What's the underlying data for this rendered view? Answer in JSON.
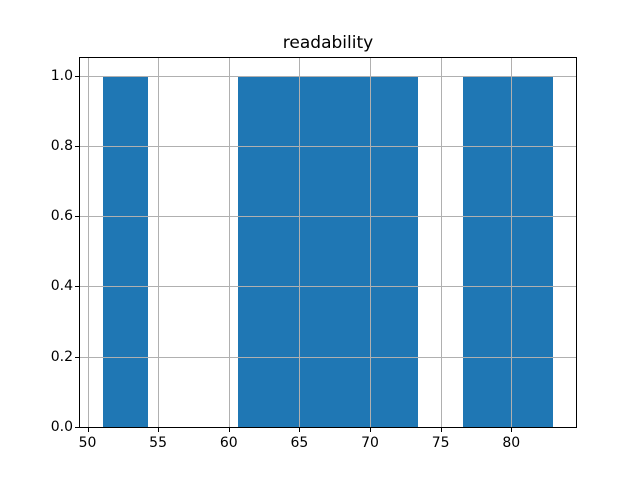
{
  "chart_data": {
    "type": "bar",
    "subtype": "histogram",
    "title": "readability",
    "xlabel": "",
    "ylabel": "",
    "bin_edges": [
      51.06,
      54.26,
      57.45,
      60.64,
      63.83,
      67.02,
      70.21,
      73.4,
      76.6,
      79.79,
      82.98
    ],
    "counts": [
      1,
      0,
      0,
      1,
      1,
      1,
      1,
      0,
      1,
      1
    ],
    "xlim": [
      49.47,
      84.58
    ],
    "ylim": [
      0,
      1.05
    ],
    "xticks": {
      "values": [
        50,
        55,
        60,
        65,
        70,
        75,
        80
      ],
      "labels": [
        "50",
        "55",
        "60",
        "65",
        "70",
        "75",
        "80"
      ]
    },
    "yticks": {
      "values": [
        0.0,
        0.2,
        0.4,
        0.6,
        0.8,
        1.0
      ],
      "labels": [
        "0.0",
        "0.2",
        "0.4",
        "0.6",
        "0.8",
        "1.0"
      ]
    },
    "grid": true,
    "legend": "none",
    "bar_color": "#1f77b4",
    "grid_color": "#b0b0b0",
    "spine_color": "#000000",
    "text_color": "#000000",
    "background_color": "#ffffff"
  }
}
